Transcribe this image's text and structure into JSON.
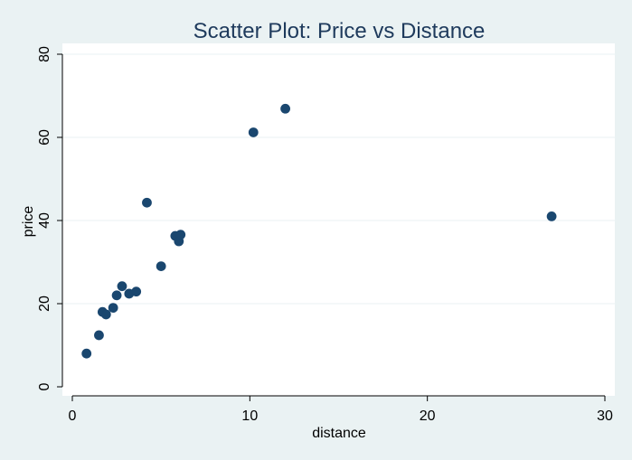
{
  "chart_data": {
    "type": "scatter",
    "title": "Scatter Plot: Price vs Distance",
    "xlabel": "distance",
    "ylabel": "price",
    "xlim": [
      0,
      30
    ],
    "ylim": [
      0,
      80
    ],
    "xticks": [
      0,
      10,
      20,
      30
    ],
    "yticks": [
      0,
      20,
      40,
      60,
      80
    ],
    "grid": true,
    "colors": {
      "background": "#EAF2F3",
      "plot_area": "#FFFFFF",
      "marker": "#1A476F",
      "title": "#1E3A5C",
      "text": "#000000",
      "gridline": "#EAF2F3"
    },
    "points": [
      {
        "x": 0.8,
        "y": 8.0
      },
      {
        "x": 1.5,
        "y": 12.4
      },
      {
        "x": 1.7,
        "y": 18.0
      },
      {
        "x": 1.9,
        "y": 17.4
      },
      {
        "x": 2.3,
        "y": 19.0
      },
      {
        "x": 2.5,
        "y": 22.0
      },
      {
        "x": 2.8,
        "y": 24.2
      },
      {
        "x": 3.2,
        "y": 22.4
      },
      {
        "x": 3.6,
        "y": 22.9
      },
      {
        "x": 4.2,
        "y": 44.3
      },
      {
        "x": 5.0,
        "y": 29.0
      },
      {
        "x": 5.8,
        "y": 36.3
      },
      {
        "x": 6.0,
        "y": 35.0
      },
      {
        "x": 6.1,
        "y": 36.6
      },
      {
        "x": 10.2,
        "y": 61.2
      },
      {
        "x": 12.0,
        "y": 66.9
      },
      {
        "x": 27.0,
        "y": 41.0
      }
    ]
  }
}
